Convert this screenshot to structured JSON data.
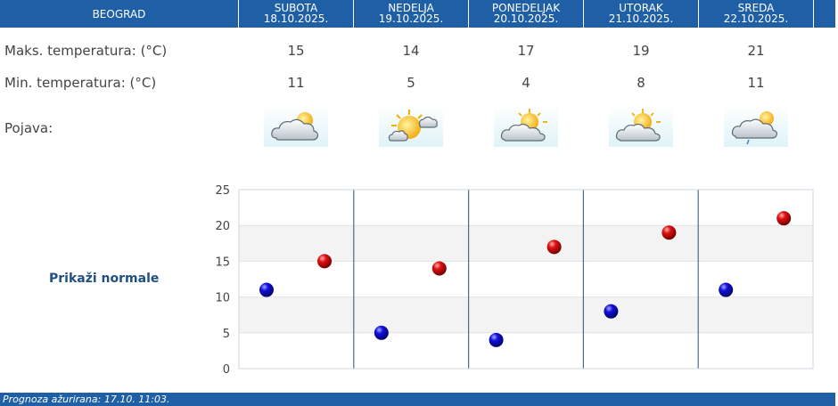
{
  "header": {
    "location": "BEOGRAD",
    "days": [
      {
        "name": "SUBOTA",
        "date": "18.10.2025."
      },
      {
        "name": "NEDELJA",
        "date": "19.10.2025."
      },
      {
        "name": "PONEDELJAK",
        "date": "20.10.2025."
      },
      {
        "name": "UTORAK",
        "date": "21.10.2025."
      },
      {
        "name": "SREDA",
        "date": "22.10.2025."
      }
    ]
  },
  "rows": {
    "max_label": "Maks. temperatura: (°C)",
    "min_label": "Min. temperatura: (°C)",
    "phenomenon_label": "Pojava:"
  },
  "forecast_icons": [
    "cloudy-sun-icon",
    "sunny-cloud-icon",
    "partly-cloudy-icon",
    "partly-cloudy-icon",
    "cloudy-light-rain-icon"
  ],
  "normals_link": "Prikaži normale",
  "footer": {
    "updated": "Prognoza ažurirana:  17.10. 11:03."
  },
  "colors": {
    "header": "#1f5fa5",
    "max": "#cc0000",
    "min": "#0000cc"
  },
  "chart_data": {
    "type": "scatter",
    "categories": [
      "SUBOTA",
      "NEDELJA",
      "PONEDELJAK",
      "UTORAK",
      "SREDA"
    ],
    "series": [
      {
        "name": "",
        "values": [
          15,
          14,
          17,
          19,
          21
        ]
      },
      {
        "name": "",
        "values": [
          11,
          5,
          4,
          8,
          11
        ]
      }
    ],
    "yticks": [
      0,
      5,
      10,
      15,
      20,
      25
    ],
    "ylim": [
      0,
      25
    ],
    "grid": true
  }
}
